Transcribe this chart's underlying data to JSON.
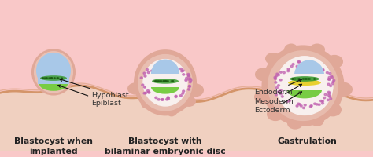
{
  "bg_color": "#f9c8c8",
  "wave_color": "#d4956a",
  "wave_fill_top": "#e8c0a8",
  "wave_fill_bottom": "#f0d0c0",
  "title1": "Blastocyst when\nimplanted",
  "title2": "Blastocyst with\nbilaminar embryonic disc",
  "title3": "Gastrulation",
  "label_epiblast": "Epiblast",
  "label_hypoblast": "Hypoblast",
  "label_ectoderm": "Ectoderm",
  "label_mesoderm": "Mesoderm",
  "label_endoderm": "Endoderm",
  "color_blue_light": "#a8c8e8",
  "color_blue_outline": "#4870a0",
  "color_green_bright": "#78cc44",
  "color_green_dark": "#3a9a30",
  "color_yellow": "#e8d030",
  "color_trophoblast": "#e0a898",
  "color_trophoblast_inner": "#ecc8bc",
  "color_trophoblast_cavity": "#f8ecea",
  "color_white_cavity": "#f8f0ee",
  "color_purple": "#c060b0",
  "color_pink_light": "#f0c8c0",
  "text_color": "#222222",
  "label_color": "#333333",
  "arrow_color": "#111111"
}
